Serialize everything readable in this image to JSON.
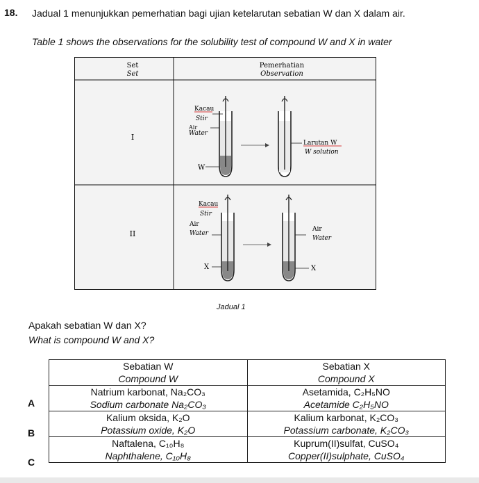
{
  "question": {
    "number": "18.",
    "text_ms": "Jadual 1 menunjukkan pemerhatian bagi ujian ketelarutan sebatian W dan X dalam air.",
    "text_en": "Table 1 shows the observations for the solubility test of compound W and X in water"
  },
  "figure": {
    "col1_header_ms": "Set",
    "col1_header_en": "Set",
    "col2_header_ms": "Pemerhatian",
    "col2_header_en": "Observation",
    "rows": [
      {
        "set": "I",
        "stir_ms": "Kacau",
        "stir_en": "Stir",
        "water_ms": "Air",
        "water_en": "Water",
        "compound": "W",
        "solution_ms": "Larutan W",
        "solution_en": "W solution"
      },
      {
        "set": "II",
        "stir_ms": "Kacau",
        "stir_en": "Stir",
        "water_ms": "Air",
        "water_en": "Water",
        "compound": "X",
        "water2_ms": "Air",
        "water2_en": "Water",
        "compound2": "X"
      }
    ],
    "caption": "Jadual 1"
  },
  "ask": {
    "ms": "Apakah sebatian W dan X?",
    "en": "What is compound W and X?"
  },
  "options_table": {
    "header": {
      "w_ms": "Sebatian W",
      "w_en": "Compound W",
      "x_ms": "Sebatian X",
      "x_en": "Compound X"
    },
    "options": [
      {
        "letter": "A",
        "w_ms": "Natrium karbonat, Na₂CO₃",
        "w_en": "Sodium carbonate Na₂CO₃",
        "x_ms": "Asetamida, C₂H₅NO",
        "x_en": "Acetamide C₂H₅NO"
      },
      {
        "letter": "B",
        "w_ms": "Kalium oksida, K₂O",
        "w_en": "Potassium oxide, K₂O",
        "x_ms": "Kalium karbonat, K₂CO₃",
        "x_en": "Potassium carbonate, K₂CO₃"
      },
      {
        "letter": "C",
        "w_ms": "Naftalena, C₁₀H₈",
        "w_en": "Naphthalene, C₁₀H₈",
        "x_ms": "Kuprum(II)sulfat, CuSO₄",
        "x_en": "Copper(II)sulphate, CuSO₄"
      }
    ]
  }
}
